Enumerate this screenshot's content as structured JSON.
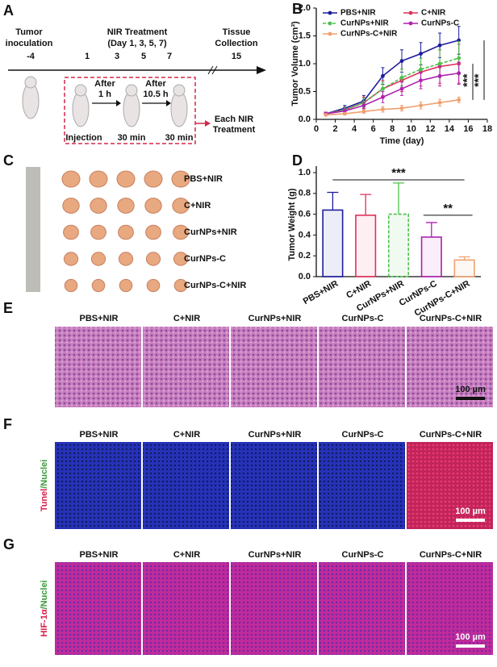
{
  "panel_labels": [
    "A",
    "B",
    "C",
    "D",
    "E",
    "F",
    "G"
  ],
  "panel_a": {
    "inoculation": [
      "Tumor",
      "inoculation"
    ],
    "treatment": [
      "NIR Treatment",
      "(Day 1, 3, 5, 7)"
    ],
    "collection": [
      "Tissue",
      "Collection"
    ],
    "days": [
      "-4",
      "1",
      "3",
      "5",
      "7",
      "15"
    ],
    "after_1": [
      "After",
      "1 h"
    ],
    "after_2": [
      "After",
      "10.5 h"
    ],
    "injection": "Injection",
    "wait_1": "30 min",
    "wait_2": "30 min",
    "each": [
      "Each NIR",
      "Treatment"
    ]
  },
  "panel_c": {
    "groups": [
      "PBS+NIR",
      "C+NIR",
      "CurNPs+NIR",
      "CurNPs-C",
      "CurNPs-C+NIR"
    ]
  },
  "panel_e": {
    "groups": [
      "PBS+NIR",
      "C+NIR",
      "CurNPs+NIR",
      "CurNPs-C",
      "CurNPs-C+NIR"
    ],
    "scale": "100 µm"
  },
  "panel_f": {
    "groups": [
      "PBS+NIR",
      "C+NIR",
      "CurNPs+NIR",
      "CurNPs-C",
      "CurNPs-C+NIR"
    ],
    "stain": [
      "Tunel",
      "/Nuclei"
    ],
    "scale": "100 µm"
  },
  "panel_g": {
    "groups": [
      "PBS+NIR",
      "C+NIR",
      "CurNPs+NIR",
      "CurNPs-C",
      "CurNPs-C+NIR"
    ],
    "stain": [
      "HIF-1α",
      "/Nuclei"
    ],
    "scale": "100 µm"
  },
  "chart_data": [
    {
      "type": "line",
      "x_label": "Time (day)",
      "y_label": "Tumor Volume (cm³)",
      "x": [
        1,
        3,
        5,
        7,
        9,
        11,
        13,
        15
      ],
      "xlim": [
        0,
        18
      ],
      "xticks": [
        0,
        2,
        4,
        6,
        8,
        10,
        12,
        14,
        16,
        18
      ],
      "ylim": [
        0,
        2.0
      ],
      "yticks": [
        {
          "value": 0,
          "label": "0.0"
        },
        {
          "value": 0.5,
          "label": "0.5"
        },
        {
          "value": 1.0,
          "label": "1.0"
        },
        {
          "value": 1.5,
          "label": "1.5"
        },
        {
          "value": 2.0,
          "label": "2.0"
        }
      ],
      "series": [
        {
          "name": "PBS+NIR",
          "color": "#1c1c9c",
          "values": [
            0.1,
            0.2,
            0.33,
            0.78,
            1.05,
            1.18,
            1.33,
            1.42
          ],
          "errors": [
            0.03,
            0.05,
            0.1,
            0.15,
            0.2,
            0.2,
            0.22,
            0.25
          ]
        },
        {
          "name": "C+NIR",
          "color": "#e0305a",
          "values": [
            0.1,
            0.17,
            0.3,
            0.55,
            0.7,
            0.85,
            0.95,
            1.0
          ],
          "errors": [
            0.03,
            0.05,
            0.1,
            0.15,
            0.2,
            0.25,
            0.3,
            0.35
          ]
        },
        {
          "name": "CurNPs+NIR",
          "color": "#4cc24c",
          "values": [
            0.1,
            0.17,
            0.3,
            0.55,
            0.75,
            0.9,
            1.0,
            1.1
          ],
          "errors": [
            0.03,
            0.05,
            0.08,
            0.12,
            0.15,
            0.2,
            0.25,
            0.3
          ]
        },
        {
          "name": "CurNPs-C",
          "color": "#b020b0",
          "values": [
            0.1,
            0.15,
            0.25,
            0.4,
            0.55,
            0.7,
            0.78,
            0.83
          ],
          "errors": [
            0.03,
            0.04,
            0.06,
            0.1,
            0.12,
            0.15,
            0.18,
            0.2
          ]
        },
        {
          "name": "CurNPs-C+NIR",
          "color": "#f0a070",
          "values": [
            0.08,
            0.1,
            0.14,
            0.18,
            0.2,
            0.25,
            0.3,
            0.35
          ],
          "errors": [
            0.02,
            0.02,
            0.03,
            0.05,
            0.05,
            0.06,
            0.06,
            0.05
          ]
        }
      ],
      "annotations": [
        "***",
        "***"
      ]
    },
    {
      "type": "bar",
      "y_label": "Tumor Weight (g)",
      "categories": [
        "PBS+NIR",
        "C+NIR",
        "CurNPs+NIR",
        "CurNPs-C",
        "CurNPs-C+NIR"
      ],
      "values": [
        0.64,
        0.59,
        0.6,
        0.38,
        0.16
      ],
      "errors": [
        0.17,
        0.2,
        0.3,
        0.14,
        0.03
      ],
      "colors": [
        "#1c1c9c",
        "#e0305a",
        "#4cc24c",
        "#b020b0",
        "#f0a070"
      ],
      "ylim": [
        0,
        1.0
      ],
      "yticks": [
        {
          "value": 0,
          "label": "0.0"
        },
        {
          "value": 0.2,
          "label": "0.2"
        },
        {
          "value": 0.4,
          "label": "0.4"
        },
        {
          "value": 0.6,
          "label": "0.6"
        },
        {
          "value": 0.8,
          "label": "0.8"
        },
        {
          "value": 1.0,
          "label": "1.0"
        }
      ],
      "annotations": [
        "***",
        "**"
      ]
    }
  ]
}
